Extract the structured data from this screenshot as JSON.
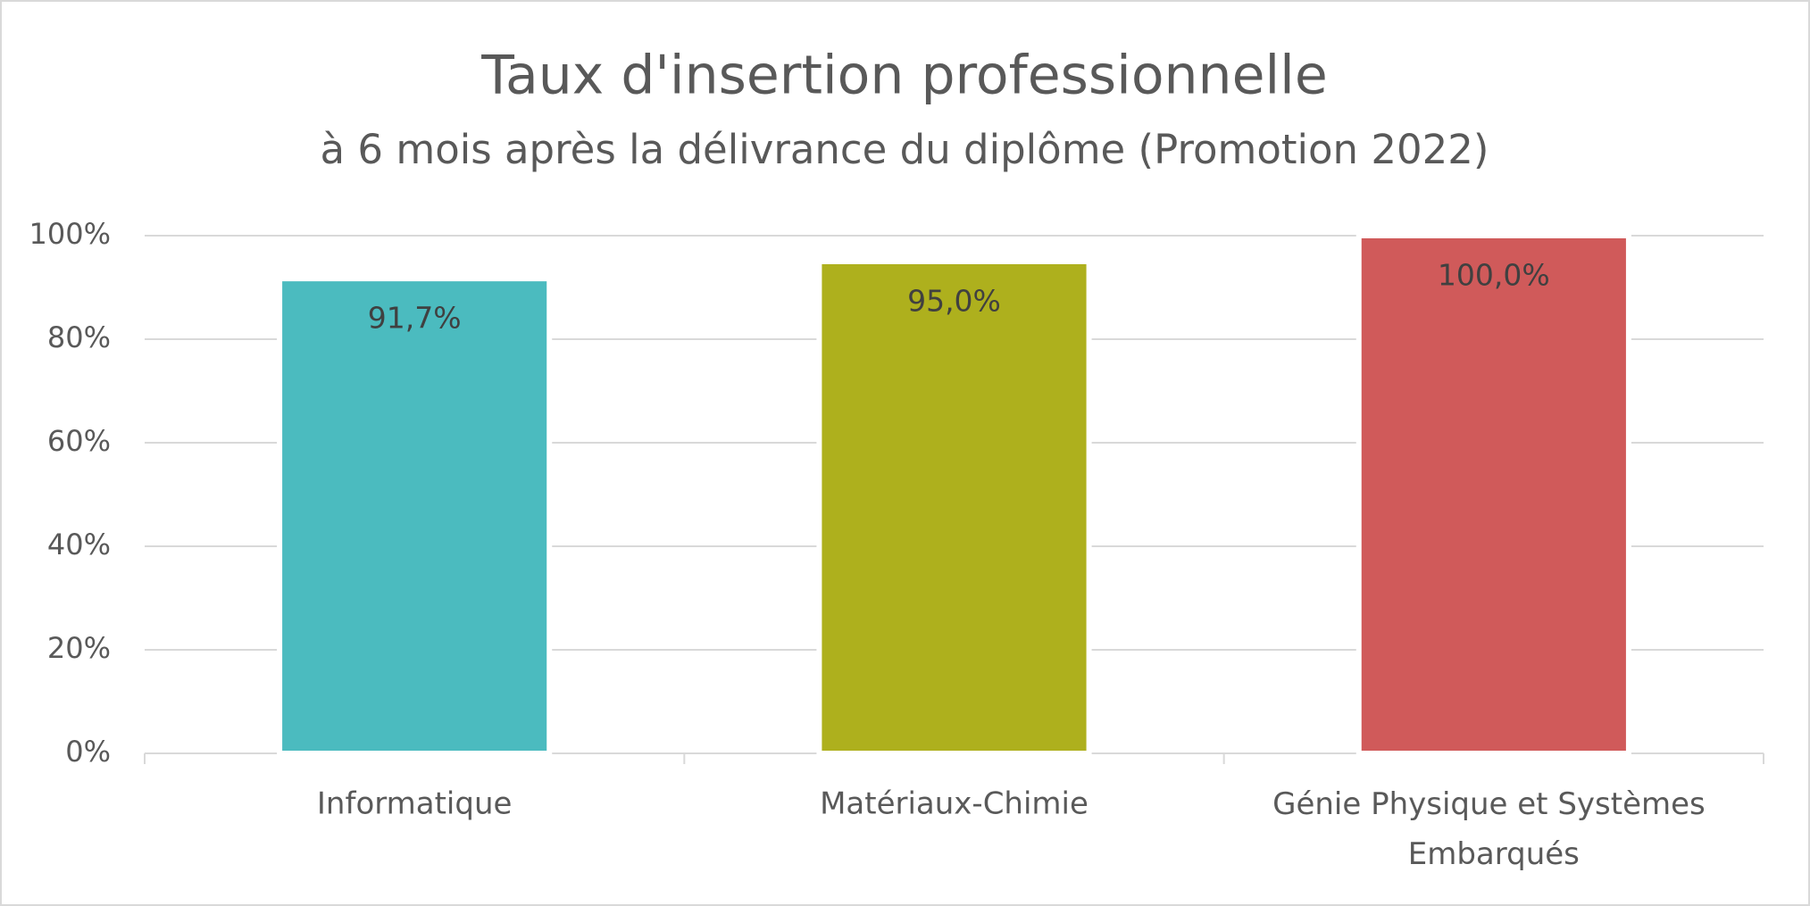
{
  "chart_data": {
    "type": "bar",
    "title": "Taux d'insertion professionnelle",
    "subtitle": "à 6 mois après la délivrance du diplôme (Promotion 2022)",
    "categories": [
      "Informatique",
      "Matériaux-Chimie",
      "Génie Physique et Systèmes Embarqués"
    ],
    "values": [
      91.7,
      95.0,
      100.0
    ],
    "value_labels": [
      "91,7%",
      "95,0%",
      "100,0%"
    ],
    "colors": [
      "#4bbbbf",
      "#aeb01d",
      "#d05a5a"
    ],
    "ylim": [
      0,
      100
    ],
    "yticks": [
      {
        "value": 0,
        "label": "0%"
      },
      {
        "value": 20,
        "label": "20%"
      },
      {
        "value": 40,
        "label": "40%"
      },
      {
        "value": 60,
        "label": "60%"
      },
      {
        "value": 80,
        "label": "80%"
      },
      {
        "value": 100,
        "label": "100%"
      }
    ],
    "grid": true
  }
}
